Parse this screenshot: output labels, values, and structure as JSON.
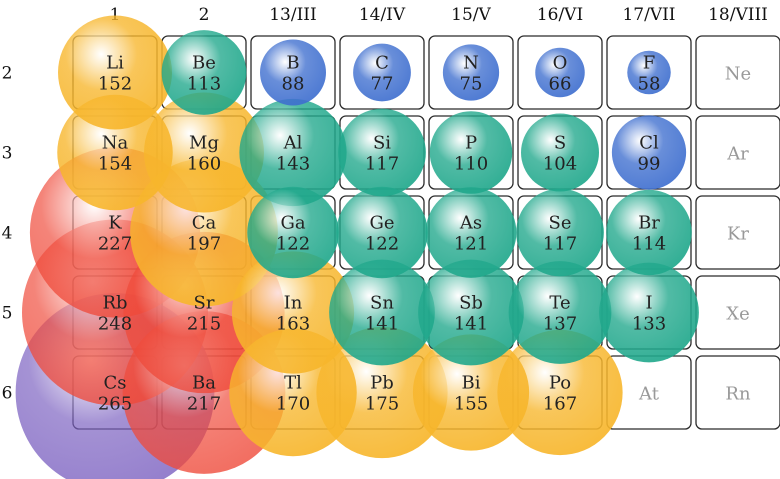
{
  "groups": [
    "1",
    "2",
    "13/III",
    "14/IV",
    "15/V",
    "16/VI",
    "17/VII",
    "18/VIII"
  ],
  "periods": [
    "2",
    "3",
    "4",
    "5",
    "6"
  ],
  "colors": {
    "alkali": "#ef4a3a",
    "alkaline_earth": "#f7b62c",
    "p_metal": "#f7b62c",
    "metalloid": "#21a88c",
    "nonmetal": "#3f6fcf",
    "cesium": "#7a5fc0"
  },
  "elements": [
    {
      "symbol": "Li",
      "radius": "152",
      "group": 0,
      "period": 0,
      "kind": "alkaline_earth"
    },
    {
      "symbol": "Be",
      "radius": "113",
      "group": 1,
      "period": 0,
      "kind": "metalloid"
    },
    {
      "symbol": "B",
      "radius": "88",
      "group": 2,
      "period": 0,
      "kind": "nonmetal"
    },
    {
      "symbol": "C",
      "radius": "77",
      "group": 3,
      "period": 0,
      "kind": "nonmetal"
    },
    {
      "symbol": "N",
      "radius": "75",
      "group": 4,
      "period": 0,
      "kind": "nonmetal"
    },
    {
      "symbol": "O",
      "radius": "66",
      "group": 5,
      "period": 0,
      "kind": "nonmetal"
    },
    {
      "symbol": "F",
      "radius": "58",
      "group": 6,
      "period": 0,
      "kind": "nonmetal"
    },
    {
      "symbol": "Na",
      "radius": "154",
      "group": 0,
      "period": 1,
      "kind": "alkaline_earth"
    },
    {
      "symbol": "Mg",
      "radius": "160",
      "group": 1,
      "period": 1,
      "kind": "alkaline_earth"
    },
    {
      "symbol": "Al",
      "radius": "143",
      "group": 2,
      "period": 1,
      "kind": "metalloid"
    },
    {
      "symbol": "Si",
      "radius": "117",
      "group": 3,
      "period": 1,
      "kind": "metalloid"
    },
    {
      "symbol": "P",
      "radius": "110",
      "group": 4,
      "period": 1,
      "kind": "metalloid"
    },
    {
      "symbol": "S",
      "radius": "104",
      "group": 5,
      "period": 1,
      "kind": "metalloid"
    },
    {
      "symbol": "Cl",
      "radius": "99",
      "group": 6,
      "period": 1,
      "kind": "nonmetal"
    },
    {
      "symbol": "K",
      "radius": "227",
      "group": 0,
      "period": 2,
      "kind": "alkali"
    },
    {
      "symbol": "Ca",
      "radius": "197",
      "group": 1,
      "period": 2,
      "kind": "alkaline_earth"
    },
    {
      "symbol": "Ga",
      "radius": "122",
      "group": 2,
      "period": 2,
      "kind": "metalloid"
    },
    {
      "symbol": "Ge",
      "radius": "122",
      "group": 3,
      "period": 2,
      "kind": "metalloid"
    },
    {
      "symbol": "As",
      "radius": "121",
      "group": 4,
      "period": 2,
      "kind": "metalloid"
    },
    {
      "symbol": "Se",
      "radius": "117",
      "group": 5,
      "period": 2,
      "kind": "metalloid"
    },
    {
      "symbol": "Br",
      "radius": "114",
      "group": 6,
      "period": 2,
      "kind": "metalloid"
    },
    {
      "symbol": "Rb",
      "radius": "248",
      "group": 0,
      "period": 3,
      "kind": "alkali"
    },
    {
      "symbol": "Sr",
      "radius": "215",
      "group": 1,
      "period": 3,
      "kind": "alkali"
    },
    {
      "symbol": "In",
      "radius": "163",
      "group": 2,
      "period": 3,
      "kind": "p_metal"
    },
    {
      "symbol": "Sn",
      "radius": "141",
      "group": 3,
      "period": 3,
      "kind": "metalloid"
    },
    {
      "symbol": "Sb",
      "radius": "141",
      "group": 4,
      "period": 3,
      "kind": "metalloid"
    },
    {
      "symbol": "Te",
      "radius": "137",
      "group": 5,
      "period": 3,
      "kind": "metalloid"
    },
    {
      "symbol": "I",
      "radius": "133",
      "group": 6,
      "period": 3,
      "kind": "metalloid"
    },
    {
      "symbol": "Cs",
      "radius": "265",
      "group": 0,
      "period": 4,
      "kind": "cesium"
    },
    {
      "symbol": "Ba",
      "radius": "217",
      "group": 1,
      "period": 4,
      "kind": "alkali"
    },
    {
      "symbol": "Tl",
      "radius": "170",
      "group": 2,
      "period": 4,
      "kind": "p_metal"
    },
    {
      "symbol": "Pb",
      "radius": "175",
      "group": 3,
      "period": 4,
      "kind": "p_metal"
    },
    {
      "symbol": "Bi",
      "radius": "155",
      "group": 4,
      "period": 4,
      "kind": "p_metal"
    },
    {
      "symbol": "Po",
      "radius": "167",
      "group": 5,
      "period": 4,
      "kind": "p_metal"
    }
  ],
  "unsized": [
    {
      "symbol": "Ne",
      "group": 7,
      "period": 0
    },
    {
      "symbol": "Ar",
      "group": 7,
      "period": 1
    },
    {
      "symbol": "Kr",
      "group": 7,
      "period": 2
    },
    {
      "symbol": "Xe",
      "group": 7,
      "period": 3
    },
    {
      "symbol": "At",
      "group": 6,
      "period": 4
    },
    {
      "symbol": "Rn",
      "group": 7,
      "period": 4
    }
  ]
}
